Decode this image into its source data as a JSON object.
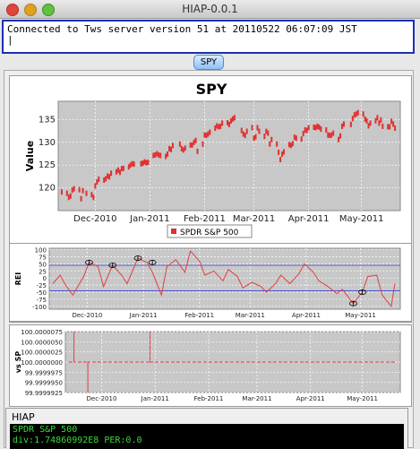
{
  "window": {
    "title": "HIAP-0.0.1"
  },
  "console": {
    "message": "Connected to Tws server version 51 at 20110522 06:07:09 JST",
    "cursor": "|"
  },
  "tab": {
    "label": "SPY"
  },
  "chart_data": [
    {
      "type": "scatter",
      "title": "SPY",
      "ylabel": "Value",
      "xlabel": "",
      "ylim": [
        115,
        139
      ],
      "yticks": [
        120,
        125,
        130,
        135
      ],
      "xticks": [
        "Dec-2010",
        "Jan-2011",
        "Feb-2011",
        "Mar-2011",
        "Apr-2011",
        "May-2011"
      ],
      "legend": "SPDR S&P 500",
      "legend_placement": "bottom",
      "grid": true,
      "series": [
        {
          "name": "SPDR S&P 500",
          "color": "#e03030",
          "x": [
            "2010-11-12",
            "2010-11-15",
            "2010-11-16",
            "2010-11-17",
            "2010-11-18",
            "2010-11-19",
            "2010-11-22",
            "2010-11-23",
            "2010-11-24",
            "2010-11-26",
            "2010-11-29",
            "2010-11-30",
            "2010-12-01",
            "2010-12-02",
            "2010-12-03",
            "2010-12-06",
            "2010-12-07",
            "2010-12-08",
            "2010-12-09",
            "2010-12-10",
            "2010-12-13",
            "2010-12-14",
            "2010-12-15",
            "2010-12-16",
            "2010-12-17",
            "2010-12-20",
            "2010-12-21",
            "2010-12-22",
            "2010-12-23",
            "2010-12-27",
            "2010-12-28",
            "2010-12-29",
            "2010-12-30",
            "2010-12-31",
            "2011-01-03",
            "2011-01-04",
            "2011-01-05",
            "2011-01-06",
            "2011-01-07",
            "2011-01-10",
            "2011-01-11",
            "2011-01-12",
            "2011-01-13",
            "2011-01-14",
            "2011-01-18",
            "2011-01-19",
            "2011-01-20",
            "2011-01-21",
            "2011-01-24",
            "2011-01-25",
            "2011-01-26",
            "2011-01-27",
            "2011-01-28",
            "2011-01-31",
            "2011-02-01",
            "2011-02-02",
            "2011-02-03",
            "2011-02-04",
            "2011-02-07",
            "2011-02-08",
            "2011-02-09",
            "2011-02-10",
            "2011-02-11",
            "2011-02-14",
            "2011-02-15",
            "2011-02-16",
            "2011-02-17",
            "2011-02-18",
            "2011-02-22",
            "2011-02-23",
            "2011-02-24",
            "2011-02-25",
            "2011-02-28",
            "2011-03-01",
            "2011-03-02",
            "2011-03-03",
            "2011-03-04",
            "2011-03-07",
            "2011-03-08",
            "2011-03-09",
            "2011-03-10",
            "2011-03-11",
            "2011-03-14",
            "2011-03-15",
            "2011-03-16",
            "2011-03-17",
            "2011-03-18",
            "2011-03-21",
            "2011-03-22",
            "2011-03-23",
            "2011-03-24",
            "2011-03-25",
            "2011-03-28",
            "2011-03-29",
            "2011-03-30",
            "2011-03-31",
            "2011-04-01",
            "2011-04-04",
            "2011-04-05",
            "2011-04-06",
            "2011-04-07",
            "2011-04-08",
            "2011-04-11",
            "2011-04-12",
            "2011-04-13",
            "2011-04-14",
            "2011-04-15",
            "2011-04-18",
            "2011-04-19",
            "2011-04-20",
            "2011-04-21",
            "2011-04-25",
            "2011-04-26",
            "2011-04-27",
            "2011-04-28",
            "2011-04-29",
            "2011-05-02",
            "2011-05-03",
            "2011-05-04",
            "2011-05-05",
            "2011-05-06",
            "2011-05-09",
            "2011-05-10",
            "2011-05-11",
            "2011-05-12",
            "2011-05-13",
            "2011-05-16",
            "2011-05-17",
            "2011-05-18",
            "2011-05-19",
            "2011-05-20"
          ],
          "y": [
            119.1,
            118.8,
            117.9,
            118.2,
            119.5,
            119.8,
            119.6,
            117.6,
            119.4,
            118.8,
            118.5,
            117.9,
            120.4,
            121.3,
            121.9,
            121.7,
            122.0,
            122.6,
            122.4,
            123.2,
            123.5,
            123.9,
            123.4,
            124.2,
            124.3,
            124.6,
            125.0,
            125.3,
            125.2,
            125.3,
            125.4,
            125.7,
            125.5,
            125.6,
            127.1,
            127.2,
            127.5,
            127.2,
            127.1,
            126.9,
            127.4,
            128.6,
            128.4,
            129.3,
            129.6,
            128.6,
            128.3,
            128.7,
            129.4,
            129.4,
            130.0,
            130.4,
            128.0,
            129.6,
            131.6,
            131.5,
            131.8,
            132.2,
            133.1,
            133.6,
            133.4,
            133.5,
            134.2,
            134.3,
            133.9,
            134.7,
            135.1,
            135.4,
            132.6,
            131.8,
            131.5,
            132.4,
            133.2,
            130.9,
            131.2,
            133.2,
            132.4,
            131.3,
            132.4,
            132.0,
            129.6,
            130.6,
            129.6,
            127.8,
            126.2,
            127.4,
            127.9,
            129.5,
            129.3,
            129.7,
            131.1,
            130.9,
            130.7,
            131.9,
            132.7,
            132.6,
            133.2,
            133.3,
            133.2,
            133.5,
            133.3,
            132.9,
            132.7,
            131.6,
            131.5,
            131.6,
            132.0,
            130.6,
            131.4,
            133.5,
            134.0,
            133.9,
            135.2,
            136.0,
            136.2,
            136.5,
            136.2,
            135.1,
            134.7,
            133.6,
            134.2,
            134.7,
            135.4,
            134.2,
            134.9,
            133.5,
            133.4,
            133.4,
            134.6,
            134.0,
            133.1
          ]
        }
      ]
    },
    {
      "type": "line",
      "ylabel": "REI",
      "ylim": [
        -110,
        105
      ],
      "yticks": [
        100,
        75,
        50,
        25,
        0,
        -25,
        -50,
        -75,
        -100
      ],
      "xticks": [
        "Dec-2010",
        "Jan-2011",
        "Feb-2011",
        "Mar-2011",
        "Apr-2011",
        "May-2011"
      ],
      "reference_lines": [
        45,
        -45
      ],
      "series": [
        {
          "name": "REI",
          "color": "#e04040",
          "x": [
            "2010-11-12",
            "2010-11-16",
            "2010-11-19",
            "2010-11-23",
            "2010-11-29",
            "2010-12-02",
            "2010-12-07",
            "2010-12-10",
            "2010-12-15",
            "2010-12-20",
            "2010-12-23",
            "2010-12-29",
            "2011-01-03",
            "2011-01-06",
            "2011-01-11",
            "2011-01-14",
            "2011-01-19",
            "2011-01-24",
            "2011-01-27",
            "2011-02-01",
            "2011-02-04",
            "2011-02-09",
            "2011-02-14",
            "2011-02-17",
            "2011-02-22",
            "2011-02-25",
            "2011-03-02",
            "2011-03-07",
            "2011-03-10",
            "2011-03-15",
            "2011-03-18",
            "2011-03-23",
            "2011-03-28",
            "2011-03-31",
            "2011-04-05",
            "2011-04-08",
            "2011-04-13",
            "2011-04-18",
            "2011-04-21",
            "2011-04-27",
            "2011-05-02",
            "2011-05-05",
            "2011-05-10",
            "2011-05-13",
            "2011-05-18",
            "2011-05-20"
          ],
          "y": [
            -20,
            10,
            -25,
            -60,
            5,
            55,
            40,
            -30,
            45,
            10,
            -20,
            70,
            55,
            20,
            -60,
            40,
            65,
            20,
            95,
            60,
            10,
            25,
            -10,
            30,
            5,
            -35,
            -15,
            -30,
            -50,
            -20,
            10,
            -20,
            15,
            50,
            20,
            -10,
            -30,
            -55,
            -40,
            -90,
            -50,
            5,
            10,
            -60,
            -100,
            -20
          ],
          "markers": [
            {
              "x": "2010-12-02",
              "y": 55
            },
            {
              "x": "2010-12-15",
              "y": 45
            },
            {
              "x": "2010-12-29",
              "y": 70
            },
            {
              "x": "2011-01-06",
              "y": 55
            },
            {
              "x": "2011-04-27",
              "y": -90
            },
            {
              "x": "2011-05-02",
              "y": -50
            }
          ]
        }
      ]
    },
    {
      "type": "line",
      "ylabel": "vs SP",
      "ylim": [
        99.9999925,
        100.0000075
      ],
      "yticks": [
        "100.0000075",
        "100.0000050",
        "100.0000025",
        "100.0000000",
        "99.9999975",
        "99.9999950",
        "99.9999925"
      ],
      "xticks": [
        "Dec-2010",
        "Jan-2011",
        "Feb-2011",
        "Mar-2011",
        "Apr-2011",
        "May-2011"
      ],
      "series": [
        {
          "name": "vs SP",
          "color": "#e04040",
          "x": [
            "2010-11-12",
            "2010-11-15",
            "2010-11-15",
            "2010-11-15",
            "2010-11-23",
            "2010-11-23",
            "2010-11-23",
            "2010-12-29",
            "2010-12-29",
            "2010-12-29",
            "2011-05-20"
          ],
          "y": [
            100.0,
            100.0,
            100.0000075,
            100.0,
            100.0,
            99.9999925,
            100.0,
            100.0,
            100.0000075,
            100.0,
            100.0
          ]
        }
      ]
    }
  ],
  "hiap": {
    "title": "HIAP",
    "line1": "SPDR S&P 500",
    "line2": "div:1.74860992E8   PER:0.0"
  }
}
